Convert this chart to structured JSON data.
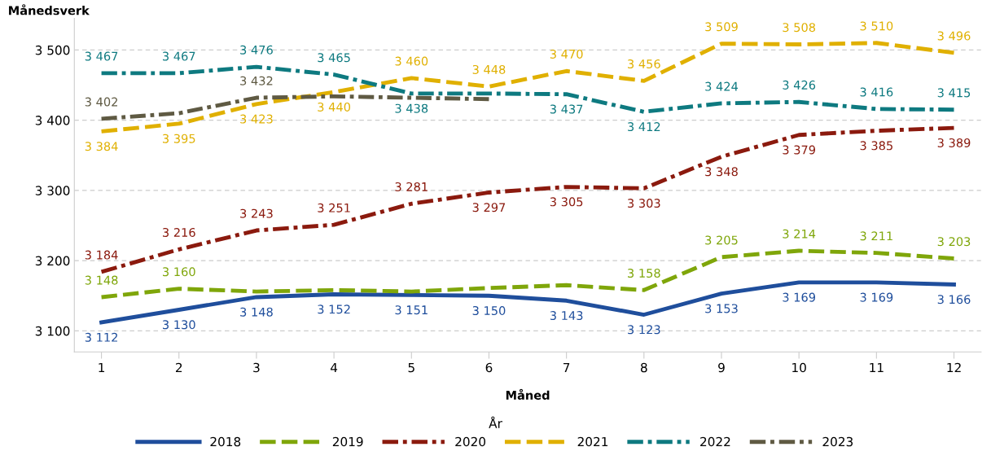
{
  "chart_data": {
    "type": "line",
    "xlabel": "Måned",
    "ylabel": "Månedsverk",
    "legend_title": "År",
    "categories": [
      "1",
      "2",
      "3",
      "4",
      "5",
      "6",
      "7",
      "8",
      "9",
      "10",
      "11",
      "12"
    ],
    "ylim": [
      3070,
      3545
    ],
    "yticks": [
      {
        "value": 3100,
        "label": "3 100"
      },
      {
        "value": 3200,
        "label": "3 200"
      },
      {
        "value": 3300,
        "label": "3 300"
      },
      {
        "value": 3400,
        "label": "3 400"
      },
      {
        "value": 3500,
        "label": "3 500"
      }
    ],
    "grid": "y",
    "legend": "bottom",
    "marker": "none",
    "series": [
      {
        "name": "2018",
        "color": "#1f4e9c",
        "line_style": "solid",
        "values": [
          3112,
          3130,
          3148,
          3152,
          3151,
          3150,
          3143,
          3123,
          3153,
          3169,
          3169,
          3166
        ],
        "value_labels": [
          "3 112",
          "3 130",
          "3 148",
          "3 152",
          "3 151",
          "3 150",
          "3 143",
          "3 123",
          "3 153",
          "3 169",
          "3 169",
          "3 166"
        ]
      },
      {
        "name": "2019",
        "color": "#7fa60a",
        "line_style": "dashed",
        "values": [
          3148,
          3160,
          3156,
          3158,
          3156,
          3161,
          3165,
          3158,
          3205,
          3214,
          3211,
          3203
        ],
        "value_labels": [
          "3 148",
          "3 160",
          null,
          null,
          null,
          null,
          null,
          "3 158",
          "3 205",
          "3 214",
          "3 211",
          "3 203"
        ]
      },
      {
        "name": "2020",
        "color": "#8b1a0e",
        "line_style": "dashdot",
        "values": [
          3184,
          3216,
          3243,
          3251,
          3281,
          3297,
          3305,
          3303,
          3348,
          3379,
          3385,
          3389
        ],
        "value_labels": [
          "3 184",
          "3 216",
          "3 243",
          "3 251",
          "3 281",
          "3 297",
          "3 305",
          "3 303",
          "3 348",
          "3 379",
          "3 385",
          "3 389"
        ]
      },
      {
        "name": "2021",
        "color": "#e0b000",
        "line_style": "dashed",
        "values": [
          3384,
          3395,
          3423,
          3440,
          3460,
          3448,
          3470,
          3456,
          3509,
          3508,
          3510,
          3496
        ],
        "value_labels": [
          "3 384",
          "3 395",
          "3 423",
          "3 440",
          "3 460",
          "3 448",
          "3 470",
          "3 456",
          "3 509",
          "3 508",
          "3 510",
          "3 496"
        ]
      },
      {
        "name": "2022",
        "color": "#0e7a80",
        "line_style": "dashdot",
        "values": [
          3467,
          3467,
          3476,
          3465,
          3438,
          3438,
          3437,
          3412,
          3424,
          3426,
          3416,
          3415
        ],
        "value_labels": [
          "3 467",
          "3 467",
          "3 476",
          "3 465",
          "3 438",
          null,
          "3 437",
          "3 412",
          "3 424",
          "3 426",
          "3 416",
          "3 415"
        ]
      },
      {
        "name": "2023",
        "color": "#5f5a43",
        "line_style": "dashdot",
        "values": [
          3402,
          3410,
          3432,
          3434,
          3432,
          3430,
          null,
          null,
          null,
          null,
          null,
          null
        ],
        "value_labels": [
          "3 402",
          null,
          "3 432",
          null,
          null,
          null,
          null,
          null,
          null,
          null,
          null,
          null
        ]
      }
    ]
  }
}
